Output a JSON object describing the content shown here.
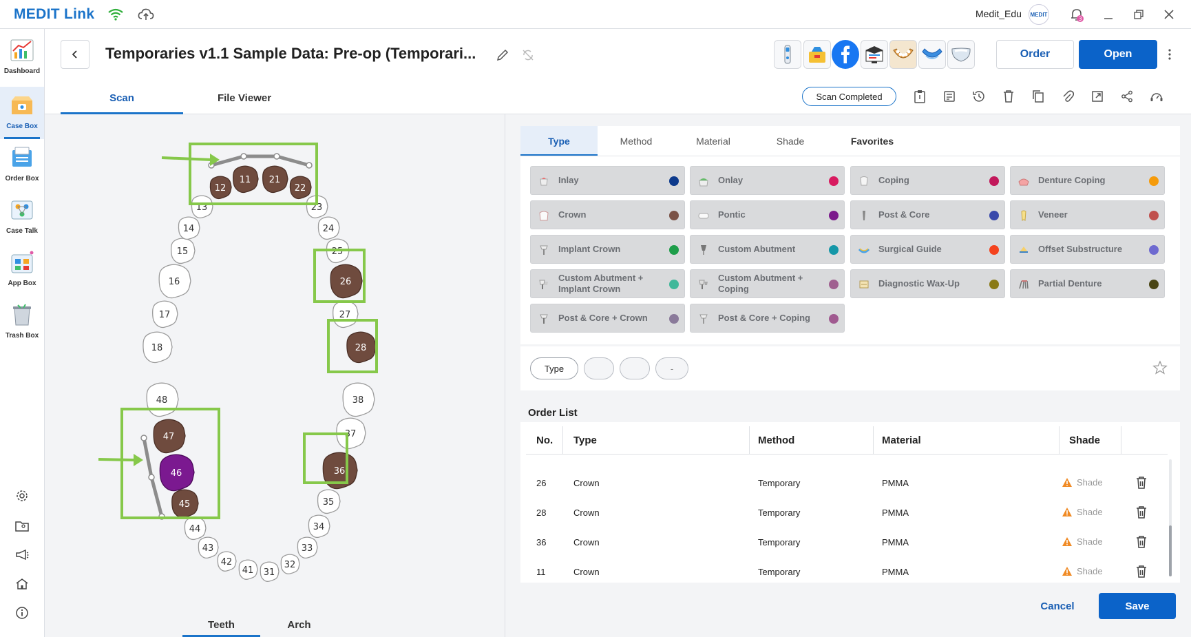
{
  "app": {
    "logo": "MEDIT Link",
    "user": "Medit_Edu",
    "user_badge": "MEDIT",
    "notification_count": "3"
  },
  "sidebar": {
    "items": [
      {
        "label": "Dashboard"
      },
      {
        "label": "Case Box"
      },
      {
        "label": "Order Box"
      },
      {
        "label": "Case Talk"
      },
      {
        "label": "App Box"
      },
      {
        "label": "Trash Box"
      }
    ]
  },
  "header": {
    "title": "Temporaries v1.1 Sample Data: Pre-op (Temporari...",
    "order_label": "Order",
    "open_label": "Open",
    "tabs": [
      {
        "label": "Scan"
      },
      {
        "label": "File Viewer"
      }
    ],
    "status": "Scan Completed"
  },
  "teeth": {
    "upper_right": [
      "18",
      "17",
      "16",
      "15",
      "14",
      "13",
      "12",
      "11"
    ],
    "upper_left": [
      "21",
      "22",
      "23",
      "24",
      "25",
      "26",
      "27",
      "28"
    ],
    "lower_left": [
      "38",
      "37",
      "36",
      "35",
      "34",
      "33",
      "32",
      "31"
    ],
    "lower_right": [
      "48",
      "47",
      "46",
      "45",
      "44",
      "43",
      "42",
      "41"
    ],
    "selected_crown": [
      "11",
      "12",
      "21",
      "22",
      "26",
      "28",
      "36",
      "45",
      "47"
    ],
    "selected_highlight": [
      "46"
    ],
    "colors": {
      "crown": "#6f4b3e",
      "highlight": "#7b1990",
      "box": "#86c84a",
      "bridge": "#8c8c8c"
    }
  },
  "bottom_tabs": [
    {
      "label": "Teeth"
    },
    {
      "label": "Arch"
    }
  ],
  "type_panel": {
    "tabs": [
      {
        "label": "Type"
      },
      {
        "label": "Method"
      },
      {
        "label": "Material"
      },
      {
        "label": "Shade"
      },
      {
        "label": "Favorites"
      }
    ],
    "types": [
      {
        "label": "Inlay",
        "color": "#0d3a8c"
      },
      {
        "label": "Onlay",
        "color": "#d81b60"
      },
      {
        "label": "Coping",
        "color": "#c2185b"
      },
      {
        "label": "Denture Coping",
        "color": "#f59b0b"
      },
      {
        "label": "Crown",
        "color": "#7a5246"
      },
      {
        "label": "Pontic",
        "color": "#7b1a8c"
      },
      {
        "label": "Post & Core",
        "color": "#3949ab"
      },
      {
        "label": "Veneer",
        "color": "#c0504d"
      },
      {
        "label": "Implant Crown",
        "color": "#1e9e4a"
      },
      {
        "label": "Custom Abutment",
        "color": "#1597a8"
      },
      {
        "label": "Surgical Guide",
        "color": "#f4431e"
      },
      {
        "label": "Offset Substructure",
        "color": "#6e6ad0"
      },
      {
        "label": "Custom Abutment + Implant Crown",
        "color": "#40b89a"
      },
      {
        "label": "Custom Abutment + Coping",
        "color": "#a06090"
      },
      {
        "label": "Diagnostic Wax-Up",
        "color": "#8a7a16"
      },
      {
        "label": "Partial Denture",
        "color": "#4a4514"
      },
      {
        "label": "Post & Core + Crown",
        "color": "#8a7a9a"
      },
      {
        "label": "Post & Core + Coping",
        "color": "#a05a90"
      }
    ],
    "filter_chips": [
      "Type",
      "",
      "",
      "-"
    ]
  },
  "order_list": {
    "title": "Order List",
    "columns": [
      "No.",
      "Type",
      "Method",
      "Material",
      "Shade"
    ],
    "rows": [
      {
        "no": "26",
        "type": "Crown",
        "method": "Temporary",
        "material": "PMMA",
        "shade": "Shade"
      },
      {
        "no": "28",
        "type": "Crown",
        "method": "Temporary",
        "material": "PMMA",
        "shade": "Shade"
      },
      {
        "no": "36",
        "type": "Crown",
        "method": "Temporary",
        "material": "PMMA",
        "shade": "Shade"
      },
      {
        "no": "11",
        "type": "Crown",
        "method": "Temporary",
        "material": "PMMA",
        "shade": "Shade"
      }
    ]
  },
  "actions": {
    "cancel": "Cancel",
    "save": "Save"
  }
}
